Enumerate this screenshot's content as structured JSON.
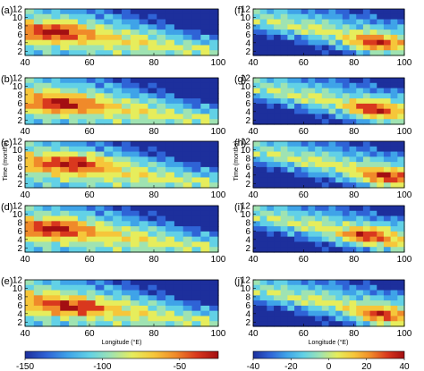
{
  "chart_data": {
    "type": "heatmap",
    "x_axis_label": "Longitude (°E)",
    "y_axis_label": "Time (months)",
    "xlim": [
      40,
      100
    ],
    "ylim": [
      1,
      12
    ],
    "x_ticks": [
      "40",
      "60",
      "80",
      "100"
    ],
    "y_ticks": [
      "2",
      "4",
      "6",
      "8",
      "10",
      "12"
    ],
    "grid": false,
    "colormap": [
      "#1d2f9c",
      "#2f63d6",
      "#3fa3e8",
      "#62d1e6",
      "#9fe3b2",
      "#e6ed5c",
      "#f6c63a",
      "#f08a2a",
      "#d9381e",
      "#a30f12"
    ],
    "panels": [
      {
        "label": "(a)",
        "column": "left",
        "hotspot": {
          "lon": 50,
          "month": 6.5
        },
        "band_end": {
          "lon": 100,
          "month": 3.5
        }
      },
      {
        "label": "(b)",
        "column": "left",
        "hotspot": {
          "lon": 52,
          "month": 5.5
        },
        "band_end": {
          "lon": 100,
          "month": 3.5
        }
      },
      {
        "label": "(c)",
        "column": "left",
        "hotspot": {
          "lon": 55,
          "month": 7
        },
        "band_end": {
          "lon": 100,
          "month": 3
        }
      },
      {
        "label": "(d)",
        "column": "left",
        "hotspot": {
          "lon": 50,
          "month": 6.5
        },
        "band_end": {
          "lon": 100,
          "month": 3.5
        }
      },
      {
        "label": "(e)",
        "column": "left",
        "hotspot": {
          "lon": 55,
          "month": 5.5
        },
        "band_end": {
          "lon": 100,
          "month": 3
        }
      },
      {
        "label": "(f)",
        "column": "right",
        "hotspot": {
          "lon": 88,
          "month": 4
        },
        "band_end": {
          "lon": 100,
          "month": 3
        }
      },
      {
        "label": "(g)",
        "column": "right",
        "hotspot": {
          "lon": 88,
          "month": 4.5
        },
        "band_end": {
          "lon": 100,
          "month": 3
        }
      },
      {
        "label": "(h)",
        "column": "right",
        "hotspot": {
          "lon": 92,
          "month": 3.5
        },
        "band_end": {
          "lon": 100,
          "month": 3
        }
      },
      {
        "label": "(i)",
        "column": "right",
        "hotspot": {
          "lon": 85,
          "month": 5
        },
        "band_end": {
          "lon": 100,
          "month": 3
        }
      },
      {
        "label": "(j)",
        "column": "right",
        "hotspot": {
          "lon": 90,
          "month": 3.5
        },
        "band_end": {
          "lon": 100,
          "month": 3
        }
      }
    ],
    "colorbars": [
      {
        "column": "left",
        "range": [
          -150,
          -25
        ],
        "ticks": [
          "-150",
          "-100",
          "-50"
        ]
      },
      {
        "column": "right",
        "range": [
          -40,
          40
        ],
        "ticks": [
          "-40",
          "-20",
          "0",
          "20",
          "40"
        ]
      }
    ]
  }
}
